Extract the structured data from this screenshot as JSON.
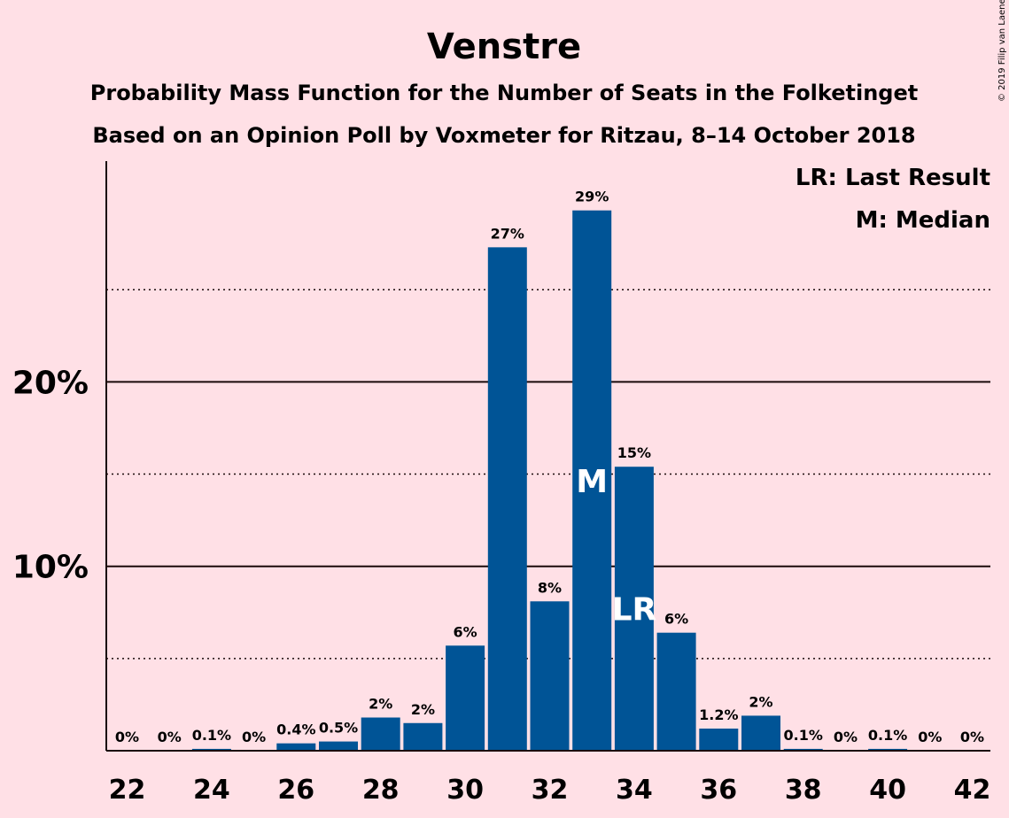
{
  "title": "Venstre",
  "subtitle1": "Probability Mass Function for the Number of Seats in the Folketinget",
  "subtitle2": "Based on an Opinion Poll by Voxmeter for Ritzau, 8–14 October 2018",
  "copyright": "© 2019 Filip van Laenen",
  "legend": {
    "lr": "LR: Last Result",
    "m": "M: Median"
  },
  "colors": {
    "bar": "#005496",
    "background": "#FFE0E6",
    "marker_text": "#FFFFFF"
  },
  "chart_data": {
    "type": "bar",
    "title": "Venstre",
    "xlabel": "",
    "ylabel": "",
    "x": [
      22,
      23,
      24,
      25,
      26,
      27,
      28,
      29,
      30,
      31,
      32,
      33,
      34,
      35,
      36,
      37,
      38,
      39,
      40,
      41,
      42
    ],
    "values": [
      0,
      0,
      0.1,
      0,
      0.4,
      0.5,
      1.8,
      1.5,
      5.7,
      27.3,
      8.1,
      29.3,
      15.4,
      6.4,
      1.2,
      1.9,
      0.1,
      0,
      0.1,
      0,
      0
    ],
    "labels": [
      "0%",
      "0%",
      "0.1%",
      "0%",
      "0.4%",
      "0.5%",
      "2%",
      "2%",
      "6%",
      "27%",
      "8%",
      "29%",
      "15%",
      "6%",
      "1.2%",
      "2%",
      "0.1%",
      "0%",
      "0.1%",
      "0%",
      "0%"
    ],
    "xticks": [
      22,
      24,
      26,
      28,
      30,
      32,
      34,
      36,
      38,
      40,
      42
    ],
    "yticks": [
      {
        "value": 10,
        "label": "10%"
      },
      {
        "value": 20,
        "label": "20%"
      }
    ],
    "minor_gridlines": [
      5,
      15,
      25
    ],
    "ylim": [
      0,
      30
    ],
    "median": {
      "x": 33,
      "label": "M"
    },
    "last_result": {
      "x": 34,
      "label": "LR"
    },
    "legend_position": "top-right"
  }
}
